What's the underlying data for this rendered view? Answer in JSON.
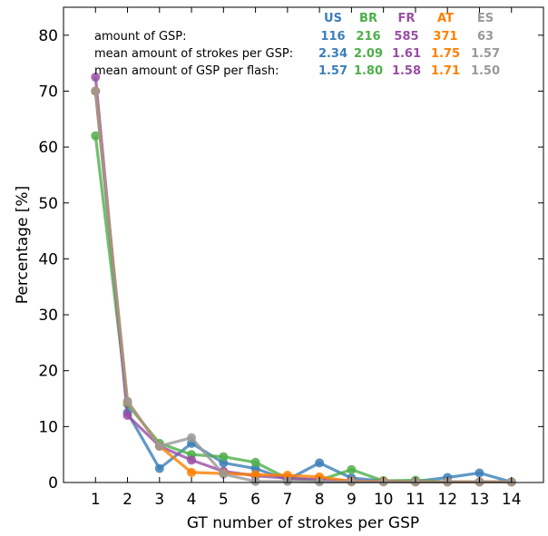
{
  "chart_data": {
    "type": "line",
    "title": "",
    "xlabel": "GT number of strokes per GSP",
    "ylabel": "Percentage [%]",
    "xlim": [
      0,
      15
    ],
    "ylim": [
      0,
      85
    ],
    "x_ticks": [
      1,
      2,
      3,
      4,
      5,
      6,
      7,
      8,
      9,
      10,
      11,
      12,
      13,
      14
    ],
    "y_ticks": [
      0,
      10,
      20,
      30,
      40,
      50,
      60,
      70,
      80
    ],
    "grid": false,
    "legend_position": "top-right",
    "legend": {
      "row_labels": [
        "amount of GSP:",
        "mean amount of strokes per GSP:",
        "mean amount of GSP per flash:"
      ]
    },
    "series": [
      {
        "name": "US",
        "color": "#3b7fb8",
        "x": [
          1,
          2,
          3,
          4,
          5,
          6,
          7,
          8,
          9,
          10,
          11,
          12,
          13,
          14
        ],
        "values": [
          70.0,
          12.5,
          2.5,
          7.0,
          3.5,
          2.5,
          0.5,
          3.5,
          0.8,
          0.3,
          0.2,
          0.9,
          1.7,
          0.1
        ],
        "stats": [
          "116",
          "2.34",
          "1.57"
        ]
      },
      {
        "name": "BR",
        "color": "#4daf4a",
        "x": [
          1,
          2,
          3,
          4,
          5,
          6,
          7,
          8,
          9,
          10,
          11,
          12,
          13,
          14
        ],
        "values": [
          62.0,
          14.0,
          7.0,
          5.0,
          4.6,
          3.6,
          0.7,
          0.4,
          2.3,
          0.3,
          0.4,
          0.1,
          0.1,
          0.1
        ],
        "stats": [
          "216",
          "2.09",
          "1.80"
        ]
      },
      {
        "name": "FR",
        "color": "#984ea3",
        "x": [
          1,
          2,
          3,
          4,
          5,
          6,
          7,
          8,
          9,
          10,
          11,
          12,
          13,
          14
        ],
        "values": [
          72.5,
          12.0,
          6.5,
          4.0,
          2.0,
          1.2,
          0.8,
          0.5,
          0.3,
          0.2,
          0.1,
          0.1,
          0.1,
          0.1
        ],
        "stats": [
          "585",
          "1.61",
          "1.58"
        ]
      },
      {
        "name": "AT",
        "color": "#ff7f00",
        "x": [
          1,
          2,
          3,
          4,
          5,
          6,
          7,
          8,
          9,
          10,
          11,
          12,
          13,
          14
        ],
        "values": [
          70.0,
          14.5,
          6.5,
          1.8,
          1.6,
          1.4,
          1.3,
          1.0,
          0.2,
          0.2,
          0.1,
          0.1,
          0.1,
          0.1
        ],
        "stats": [
          "371",
          "1.75",
          "1.71"
        ]
      },
      {
        "name": "ES",
        "color": "#999999",
        "x": [
          1,
          2,
          3,
          4,
          5,
          6,
          7,
          8,
          9,
          10,
          11,
          12,
          13,
          14
        ],
        "values": [
          70.0,
          14.5,
          6.5,
          8.0,
          1.5,
          0.2,
          0.2,
          0.1,
          0.1,
          0.1,
          0.1,
          0.1,
          0.1,
          0.1
        ],
        "stats": [
          "63",
          "1.57",
          "1.50"
        ]
      }
    ]
  }
}
